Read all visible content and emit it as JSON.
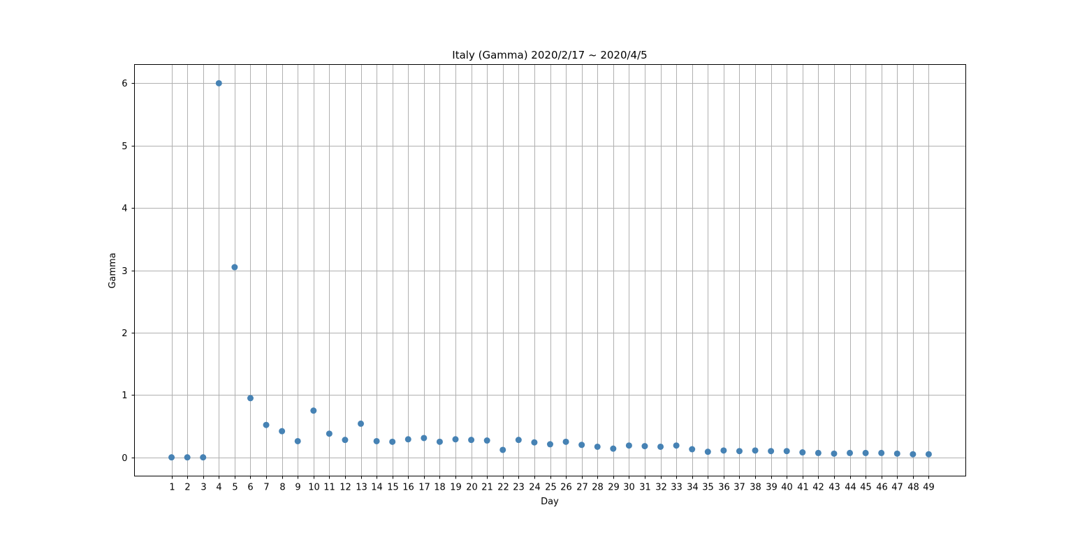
{
  "chart_data": {
    "type": "scatter",
    "title": "Italy (Gamma) 2020/2/17 ~ 2020/4/5",
    "xlabel": "Day",
    "ylabel": "Gamma",
    "x": [
      1,
      2,
      3,
      4,
      5,
      6,
      7,
      8,
      9,
      10,
      11,
      12,
      13,
      14,
      15,
      16,
      17,
      18,
      19,
      20,
      21,
      22,
      23,
      24,
      25,
      26,
      27,
      28,
      29,
      30,
      31,
      32,
      33,
      34,
      35,
      36,
      37,
      38,
      39,
      40,
      41,
      42,
      43,
      44,
      45,
      46,
      47,
      48,
      49
    ],
    "series": [
      {
        "values": [
          0,
          0,
          0,
          6.0,
          3.05,
          0.95,
          0.52,
          0.42,
          0.26,
          0.75,
          0.38,
          0.28,
          0.54,
          0.26,
          0.25,
          0.29,
          0.31,
          0.25,
          0.29,
          0.28,
          0.27,
          0.12,
          0.28,
          0.24,
          0.21,
          0.25,
          0.2,
          0.17,
          0.14,
          0.19,
          0.18,
          0.17,
          0.19,
          0.13,
          0.09,
          0.11,
          0.1,
          0.11,
          0.1,
          0.1,
          0.08,
          0.07,
          0.06,
          0.07,
          0.07,
          0.07,
          0.06,
          0.05,
          0.05
        ]
      }
    ],
    "xlim": [
      -1.35,
      51.35
    ],
    "ylim": [
      -0.3,
      6.3
    ],
    "yticks": [
      0,
      1,
      2,
      3,
      4,
      5,
      6
    ],
    "grid": true,
    "colors": {
      "points": "#4682b4",
      "grid": "#b0b0b0"
    }
  }
}
